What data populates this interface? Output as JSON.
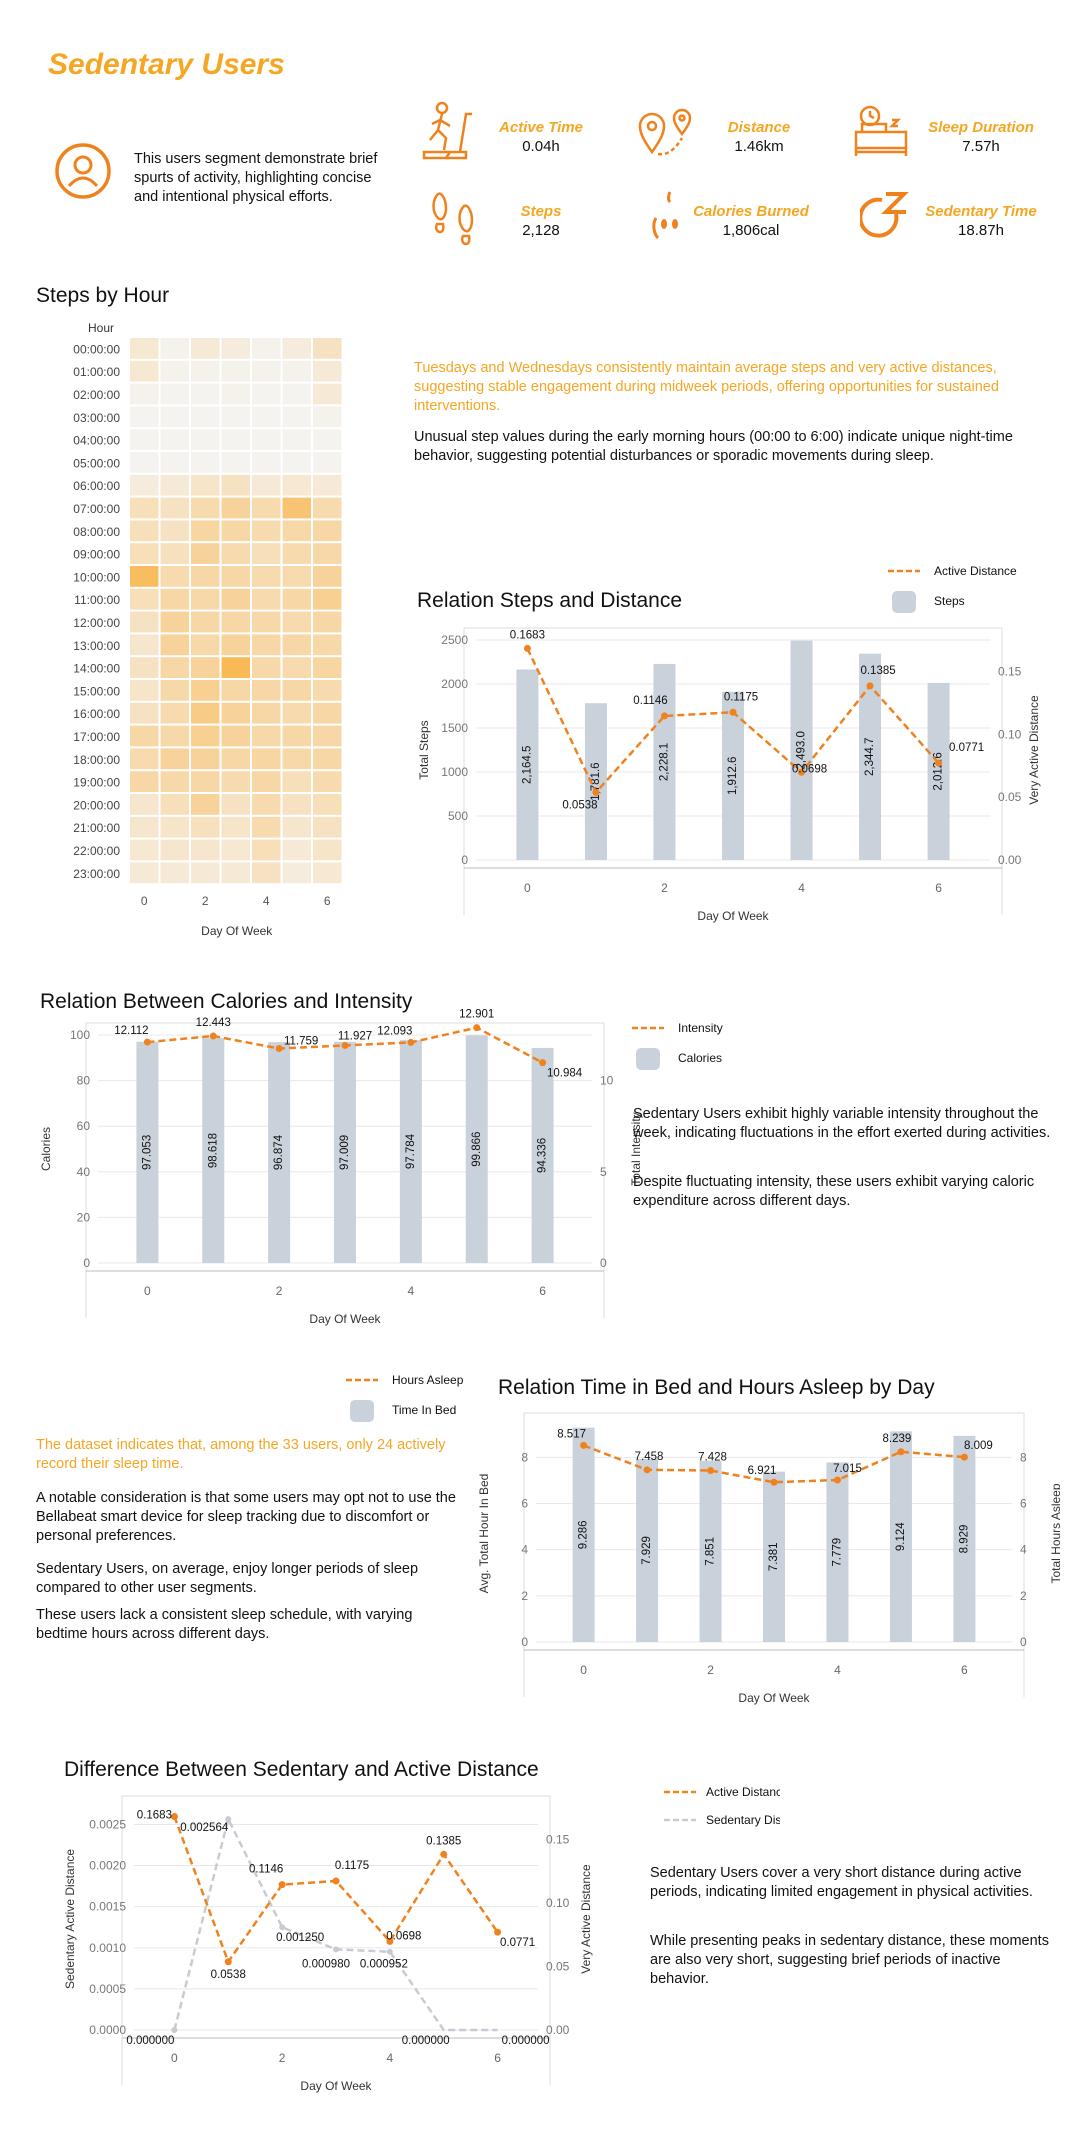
{
  "header": {
    "title": "Sedentary Users",
    "description": "This users segment demonstrate brief spurts of activity, highlighting concise and intentional physical efforts.",
    "metrics": [
      {
        "label": "Active Time",
        "value": "0.04h",
        "icon": "treadmill-icon"
      },
      {
        "label": "Distance",
        "value": "1.46km",
        "icon": "map-pins-icon"
      },
      {
        "label": "Sleep Duration",
        "value": "7.57h",
        "icon": "bed-clock-icon"
      },
      {
        "label": "Steps",
        "value": "2,128",
        "icon": "footprints-icon"
      },
      {
        "label": "Calories Burned",
        "value": "1,806cal",
        "icon": "apple-icon"
      },
      {
        "label": "Sedentary Time",
        "value": "18.87h",
        "icon": "sleep-z-icon"
      }
    ]
  },
  "colors": {
    "accent": "#f5a623",
    "line": "#f0821e",
    "bar": "#c9d1da",
    "grid": "#e8e8e8"
  },
  "steps_section": {
    "title": "Steps by Hour",
    "note_orange": "Tuesdays and Wednesdays consistently maintain average steps and very active distances, suggesting stable engagement during midweek periods, offering opportunities for sustained interventions.",
    "note_black": "Unusual step values during the early morning hours (00:00 to 6:00) indicate unique night-time behavior, suggesting potential disturbances or sporadic movements during sleep."
  },
  "calories_section": {
    "note1": "Sedentary Users exhibit highly variable intensity throughout the week, indicating fluctuations in the effort exerted during activities.",
    "note2": "Despite fluctuating intensity, these users exhibit varying caloric expenditure across different days."
  },
  "sleep_section": {
    "note_orange": "The dataset indicates that, among the 33 users, only 24 actively record their sleep time.",
    "note1": "A notable consideration is that some users may opt not to use the Bellabeat smart device for sleep tracking due to discomfort or personal preferences.",
    "note2": "Sedentary Users, on average, enjoy longer periods of sleep compared to other user segments.",
    "note3": "These users lack a consistent sleep schedule, with varying bedtime hours across different days."
  },
  "distance_section": {
    "note1": "Sedentary Users cover a very short distance during active periods, indicating limited engagement in physical activities.",
    "note2": "While presenting peaks in sedentary distance, these moments are also very short, suggesting brief periods of inactive behavior."
  },
  "chart_data": [
    {
      "id": "heatmap",
      "type": "heatmap",
      "title": "Steps by Hour",
      "xlabel": "Day Of Week",
      "ylabel": "Hour",
      "x_ticks": [
        "0",
        "2",
        "4",
        "6"
      ],
      "days": [
        0,
        1,
        2,
        3,
        4,
        5,
        6
      ],
      "hours": [
        "00:00:00",
        "01:00:00",
        "02:00:00",
        "03:00:00",
        "04:00:00",
        "05:00:00",
        "06:00:00",
        "07:00:00",
        "08:00:00",
        "09:00:00",
        "10:00:00",
        "11:00:00",
        "12:00:00",
        "13:00:00",
        "14:00:00",
        "15:00:00",
        "16:00:00",
        "17:00:00",
        "18:00:00",
        "19:00:00",
        "20:00:00",
        "21:00:00",
        "22:00:00",
        "23:00:00"
      ],
      "intensity": [
        [
          0.18,
          0.05,
          0.15,
          0.12,
          0.05,
          0.12,
          0.25
        ],
        [
          0.18,
          0.05,
          0.05,
          0.05,
          0.05,
          0.05,
          0.15
        ],
        [
          0.05,
          0.03,
          0.03,
          0.05,
          0.03,
          0.03,
          0.15
        ],
        [
          0.03,
          0.03,
          0.03,
          0.03,
          0.03,
          0.03,
          0.05
        ],
        [
          0.03,
          0.03,
          0.03,
          0.03,
          0.03,
          0.03,
          0.03
        ],
        [
          0.03,
          0.03,
          0.03,
          0.03,
          0.03,
          0.03,
          0.03
        ],
        [
          0.12,
          0.15,
          0.22,
          0.25,
          0.15,
          0.18,
          0.15
        ],
        [
          0.3,
          0.25,
          0.35,
          0.45,
          0.35,
          0.65,
          0.35
        ],
        [
          0.3,
          0.25,
          0.42,
          0.4,
          0.35,
          0.38,
          0.4
        ],
        [
          0.3,
          0.28,
          0.45,
          0.35,
          0.3,
          0.35,
          0.38
        ],
        [
          0.75,
          0.35,
          0.4,
          0.4,
          0.35,
          0.35,
          0.45
        ],
        [
          0.3,
          0.4,
          0.38,
          0.45,
          0.35,
          0.4,
          0.5
        ],
        [
          0.25,
          0.45,
          0.4,
          0.4,
          0.38,
          0.35,
          0.4
        ],
        [
          0.2,
          0.45,
          0.38,
          0.45,
          0.4,
          0.4,
          0.38
        ],
        [
          0.25,
          0.4,
          0.45,
          0.8,
          0.38,
          0.35,
          0.42
        ],
        [
          0.22,
          0.38,
          0.5,
          0.4,
          0.4,
          0.4,
          0.35
        ],
        [
          0.25,
          0.35,
          0.55,
          0.45,
          0.4,
          0.35,
          0.4
        ],
        [
          0.4,
          0.38,
          0.5,
          0.45,
          0.38,
          0.4,
          0.4
        ],
        [
          0.35,
          0.45,
          0.45,
          0.4,
          0.42,
          0.38,
          0.4
        ],
        [
          0.4,
          0.38,
          0.4,
          0.35,
          0.4,
          0.3,
          0.35
        ],
        [
          0.2,
          0.3,
          0.45,
          0.25,
          0.35,
          0.25,
          0.3
        ],
        [
          0.2,
          0.22,
          0.28,
          0.22,
          0.35,
          0.2,
          0.25
        ],
        [
          0.18,
          0.2,
          0.2,
          0.18,
          0.3,
          0.15,
          0.22
        ],
        [
          0.15,
          0.15,
          0.15,
          0.15,
          0.25,
          0.12,
          0.18
        ]
      ]
    },
    {
      "id": "steps_distance",
      "type": "bar",
      "title": "Relation Steps and Distance",
      "xlabel": "Day Of Week",
      "ylabel": "Total Steps",
      "y2label": "Very Active Distance",
      "x": [
        0,
        1,
        2,
        3,
        4,
        5,
        6
      ],
      "x_ticks": [
        0,
        2,
        4,
        6
      ],
      "ylim": [
        0,
        2500
      ],
      "y_ticks": [
        0,
        500,
        1000,
        1500,
        2000,
        2500
      ],
      "y2lim": [
        0,
        0.175
      ],
      "y2_ticks": [
        "0.00",
        "0.05",
        "0.10",
        "0.15"
      ],
      "legend_position": "top-right",
      "series": [
        {
          "name": "Steps",
          "kind": "bar",
          "values": [
            2164.5,
            1781.6,
            2228.1,
            1912.6,
            2493.0,
            2344.7,
            2012.6
          ],
          "labels": [
            "2,164.5",
            "1,781.6",
            "2,228.1",
            "1,912.6",
            "2,493.0",
            "2,344.7",
            "2,012.6"
          ]
        },
        {
          "name": "Active Distance",
          "kind": "line",
          "axis": "y2",
          "values": [
            0.1683,
            0.0538,
            0.1146,
            0.1175,
            0.0698,
            0.1385,
            0.0771
          ],
          "labels": [
            "0.1683",
            "0.0538",
            "0.1146",
            "0.1175",
            "0.0698",
            "0.1385",
            "0.0771"
          ]
        }
      ]
    },
    {
      "id": "calories_intensity",
      "type": "bar",
      "title": "Relation Between Calories and Intensity",
      "xlabel": "Day Of Week",
      "ylabel": "Calories",
      "y2label": "Total Intensity",
      "x": [
        0,
        1,
        2,
        3,
        4,
        5,
        6
      ],
      "x_ticks": [
        0,
        2,
        4,
        6
      ],
      "ylim": [
        0,
        100
      ],
      "y_ticks": [
        0,
        20,
        40,
        60,
        80,
        100
      ],
      "y2lim": [
        0,
        12.5
      ],
      "y2_ticks": [
        "0",
        "5",
        "10"
      ],
      "legend_position": "top-right",
      "series": [
        {
          "name": "Calories",
          "kind": "bar",
          "values": [
            97.053,
            98.618,
            96.874,
            97.009,
            97.784,
            99.866,
            94.336
          ],
          "labels": [
            "97.053",
            "98.618",
            "96.874",
            "97.009",
            "97.784",
            "99.866",
            "94.336"
          ]
        },
        {
          "name": "Intensity",
          "kind": "line",
          "axis": "y2",
          "values": [
            12.112,
            12.443,
            11.759,
            11.927,
            12.093,
            12.901,
            10.984
          ],
          "labels": [
            "12.112",
            "12.443",
            "11.759",
            "11.927",
            "12.093",
            "12.901",
            "10.984"
          ]
        }
      ]
    },
    {
      "id": "bed_asleep",
      "type": "bar",
      "title": "Relation Time in Bed and Hours Asleep by Day",
      "xlabel": "Day Of Week",
      "ylabel": "Avg. Total Hour In Bed",
      "y2label": "Total Hours Asleep",
      "x": [
        0,
        1,
        2,
        3,
        4,
        5,
        6
      ],
      "x_ticks": [
        0,
        2,
        4,
        6
      ],
      "ylim": [
        0,
        9.4
      ],
      "y_ticks": [
        0,
        2,
        4,
        6,
        8
      ],
      "y2lim": [
        0,
        9.4
      ],
      "y2_ticks": [
        "0",
        "2",
        "4",
        "6",
        "8"
      ],
      "legend_position": "top-left",
      "series": [
        {
          "name": "Time In Bed",
          "kind": "bar",
          "values": [
            9.286,
            7.929,
            7.851,
            7.381,
            7.779,
            9.124,
            8.929
          ],
          "labels": [
            "9.286",
            "7.929",
            "7.851",
            "7.381",
            "7.779",
            "9.124",
            "8.929"
          ]
        },
        {
          "name": "Hours Asleep",
          "kind": "line",
          "axis": "y2",
          "values": [
            8.517,
            7.458,
            7.428,
            6.921,
            7.015,
            8.239,
            8.009
          ],
          "labels": [
            "8.517",
            "7.458",
            "7.428",
            "6.921",
            "7.015",
            "8.239",
            "8.009"
          ]
        }
      ]
    },
    {
      "id": "sed_active",
      "type": "line",
      "title": "Difference Between Sedentary and Active Distance",
      "xlabel": "Day Of Week",
      "ylabel": "Sedentary Active Distance",
      "y2label": "Very Active Distance",
      "x": [
        0,
        1,
        2,
        3,
        4,
        5,
        6
      ],
      "x_ticks": [
        0,
        2,
        4,
        6
      ],
      "ylim": [
        0,
        0.0027
      ],
      "y_ticks": [
        "0.0000",
        "0.0005",
        "0.0010",
        "0.0015",
        "0.0020",
        "0.0025"
      ],
      "y2lim": [
        0,
        0.175
      ],
      "y2_ticks": [
        "0.00",
        "0.05",
        "0.10",
        "0.15"
      ],
      "legend_position": "top-right",
      "series": [
        {
          "name": "Active Distance",
          "axis": "y2",
          "values": [
            0.1683,
            0.0538,
            0.1146,
            0.1175,
            0.0698,
            0.1385,
            0.0771
          ],
          "labels": [
            "0.1683",
            "0.0538",
            "0.1146",
            "0.1175",
            "0.0698",
            "0.1385",
            "0.0771"
          ]
        },
        {
          "name": "Sedentary Distance",
          "axis": "y",
          "values": [
            0.0,
            0.002564,
            0.00125,
            0.00098,
            0.000952,
            0.0,
            0.0
          ],
          "labels": [
            "0.000000",
            "0.002564",
            "0.001250",
            "0.000980",
            "0.000952",
            "0.000000",
            "0.000000"
          ]
        }
      ]
    }
  ]
}
